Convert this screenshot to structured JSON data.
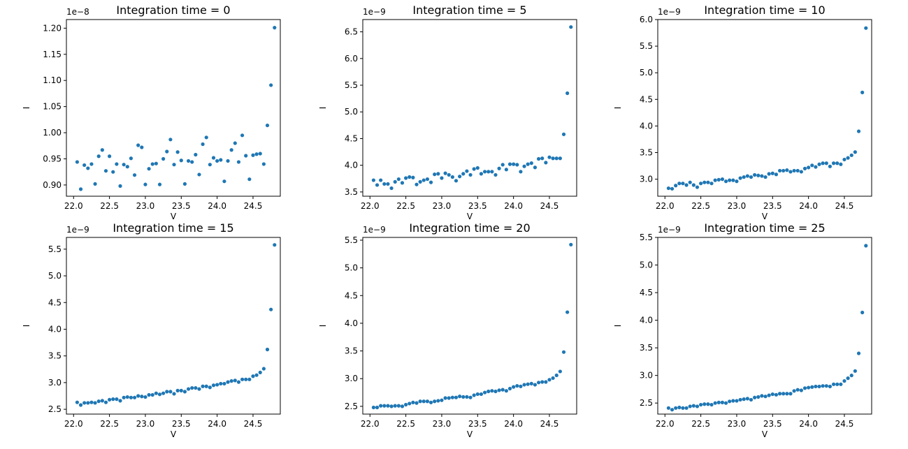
{
  "figure": {
    "colors": {
      "marker": "#1f77b4",
      "axes": "#000000",
      "background": "#ffffff"
    }
  },
  "chart_data": [
    {
      "type": "scatter",
      "title": "Integration time = 0",
      "xlabel": "V",
      "ylabel": "I",
      "offset_text": "1e−8",
      "xlim": [
        21.9,
        24.88
      ],
      "ylim": [
        0.8785,
        1.2165
      ],
      "xticks": [
        22.0,
        22.5,
        23.0,
        23.5,
        24.0,
        24.5
      ],
      "xtick_labels": [
        "22.0",
        "22.5",
        "23.0",
        "23.5",
        "24.0",
        "24.5"
      ],
      "yticks": [
        0.9,
        0.95,
        1.0,
        1.05,
        1.1,
        1.15,
        1.2
      ],
      "ytick_labels": [
        "0.90",
        "0.95",
        "1.00",
        "1.05",
        "1.10",
        "1.15",
        "1.20"
      ],
      "grid": false,
      "series": [
        {
          "x": [
            22.05,
            22.1,
            22.15,
            22.2,
            22.25,
            22.3,
            22.35,
            22.4,
            22.45,
            22.5,
            22.55,
            22.6,
            22.65,
            22.7,
            22.75,
            22.8,
            22.85,
            22.9,
            22.95,
            23.0,
            23.05,
            23.1,
            23.15,
            23.2,
            23.25,
            23.3,
            23.35,
            23.4,
            23.45,
            23.5,
            23.55,
            23.6,
            23.65,
            23.7,
            23.75,
            23.8,
            23.85,
            23.9,
            23.95,
            24.0,
            24.05,
            24.1,
            24.15,
            24.2,
            24.25,
            24.3,
            24.35,
            24.4,
            24.45,
            24.5,
            24.55,
            24.6,
            24.65,
            24.7,
            24.75,
            24.8
          ],
          "y": [
            0.944,
            0.892,
            0.938,
            0.932,
            0.94,
            0.902,
            0.955,
            0.967,
            0.927,
            0.955,
            0.925,
            0.94,
            0.898,
            0.939,
            0.935,
            0.951,
            0.919,
            0.976,
            0.972,
            0.901,
            0.931,
            0.94,
            0.941,
            0.901,
            0.95,
            0.964,
            0.987,
            0.939,
            0.963,
            0.947,
            0.902,
            0.946,
            0.944,
            0.958,
            0.92,
            0.978,
            0.991,
            0.939,
            0.952,
            0.946,
            0.948,
            0.907,
            0.946,
            0.967,
            0.98,
            0.944,
            0.995,
            0.956,
            0.911,
            0.957,
            0.959,
            0.96,
            0.94,
            1.014,
            1.091,
            1.201
          ]
        }
      ]
    },
    {
      "type": "scatter",
      "title": "Integration time = 5",
      "xlabel": "V",
      "ylabel": "I",
      "offset_text": "1e−9",
      "xlim": [
        21.9,
        24.88
      ],
      "ylim": [
        3.42,
        6.73
      ],
      "xticks": [
        22.0,
        22.5,
        23.0,
        23.5,
        24.0,
        24.5
      ],
      "xtick_labels": [
        "22.0",
        "22.5",
        "23.0",
        "23.5",
        "24.0",
        "24.5"
      ],
      "yticks": [
        3.5,
        4.0,
        4.5,
        5.0,
        5.5,
        6.0,
        6.5
      ],
      "ytick_labels": [
        "3.5",
        "4.0",
        "4.5",
        "5.0",
        "5.5",
        "6.0",
        "6.5"
      ],
      "grid": false,
      "series": [
        {
          "x": [
            22.05,
            22.1,
            22.15,
            22.2,
            22.25,
            22.3,
            22.35,
            22.4,
            22.45,
            22.5,
            22.55,
            22.6,
            22.65,
            22.7,
            22.75,
            22.8,
            22.85,
            22.9,
            22.95,
            23.0,
            23.05,
            23.1,
            23.15,
            23.2,
            23.25,
            23.3,
            23.35,
            23.4,
            23.45,
            23.5,
            23.55,
            23.6,
            23.65,
            23.7,
            23.75,
            23.8,
            23.85,
            23.9,
            23.95,
            24.0,
            24.05,
            24.1,
            24.15,
            24.2,
            24.25,
            24.3,
            24.35,
            24.4,
            24.45,
            24.5,
            24.55,
            24.6,
            24.65,
            24.7,
            24.75,
            24.8
          ],
          "y": [
            3.72,
            3.63,
            3.72,
            3.65,
            3.65,
            3.57,
            3.69,
            3.74,
            3.67,
            3.76,
            3.78,
            3.77,
            3.64,
            3.69,
            3.72,
            3.74,
            3.68,
            3.83,
            3.84,
            3.76,
            3.85,
            3.82,
            3.78,
            3.71,
            3.79,
            3.84,
            3.89,
            3.82,
            3.93,
            3.95,
            3.84,
            3.88,
            3.88,
            3.88,
            3.82,
            3.94,
            4.01,
            3.92,
            4.02,
            4.02,
            4.01,
            3.88,
            3.98,
            4.02,
            4.04,
            3.96,
            4.12,
            4.13,
            4.05,
            4.15,
            4.13,
            4.13,
            4.13,
            4.58,
            5.35,
            6.59
          ]
        }
      ]
    },
    {
      "type": "scatter",
      "title": "Integration time = 10",
      "xlabel": "V",
      "ylabel": "I",
      "offset_text": "1e−9",
      "xlim": [
        21.9,
        24.88
      ],
      "ylim": [
        2.68,
        6.0
      ],
      "xticks": [
        22.0,
        22.5,
        23.0,
        23.5,
        24.0,
        24.5
      ],
      "xtick_labels": [
        "22.0",
        "22.5",
        "23.0",
        "23.5",
        "24.0",
        "24.5"
      ],
      "yticks": [
        3.0,
        3.5,
        4.0,
        4.5,
        5.0,
        5.5,
        6.0
      ],
      "ytick_labels": [
        "3.0",
        "3.5",
        "4.0",
        "4.5",
        "5.0",
        "5.5",
        "6.0"
      ],
      "grid": false,
      "series": [
        {
          "x": [
            22.05,
            22.1,
            22.15,
            22.2,
            22.25,
            22.3,
            22.35,
            22.4,
            22.45,
            22.5,
            22.55,
            22.6,
            22.65,
            22.7,
            22.75,
            22.8,
            22.85,
            22.9,
            22.95,
            23.0,
            23.05,
            23.1,
            23.15,
            23.2,
            23.25,
            23.3,
            23.35,
            23.4,
            23.45,
            23.5,
            23.55,
            23.6,
            23.65,
            23.7,
            23.75,
            23.8,
            23.85,
            23.9,
            23.95,
            24.0,
            24.05,
            24.1,
            24.15,
            24.2,
            24.25,
            24.3,
            24.35,
            24.4,
            24.45,
            24.5,
            24.55,
            24.6,
            24.65,
            24.7,
            24.75,
            24.8
          ],
          "y": [
            2.83,
            2.82,
            2.88,
            2.92,
            2.92,
            2.89,
            2.94,
            2.89,
            2.85,
            2.92,
            2.94,
            2.94,
            2.92,
            2.98,
            2.99,
            3.0,
            2.96,
            2.98,
            2.98,
            2.96,
            3.02,
            3.04,
            3.06,
            3.04,
            3.08,
            3.07,
            3.06,
            3.04,
            3.1,
            3.11,
            3.09,
            3.16,
            3.16,
            3.17,
            3.14,
            3.16,
            3.16,
            3.14,
            3.2,
            3.22,
            3.26,
            3.23,
            3.28,
            3.3,
            3.3,
            3.24,
            3.3,
            3.3,
            3.28,
            3.37,
            3.4,
            3.45,
            3.51,
            3.9,
            4.63,
            5.84
          ]
        }
      ]
    },
    {
      "type": "scatter",
      "title": "Integration time = 15",
      "xlabel": "V",
      "ylabel": "I",
      "offset_text": "1e−9",
      "xlim": [
        21.9,
        24.88
      ],
      "ylim": [
        2.41,
        5.72
      ],
      "xticks": [
        22.0,
        22.5,
        23.0,
        23.5,
        24.0,
        24.5
      ],
      "xtick_labels": [
        "22.0",
        "22.5",
        "23.0",
        "23.5",
        "24.0",
        "24.5"
      ],
      "yticks": [
        2.5,
        3.0,
        3.5,
        4.0,
        4.5,
        5.0,
        5.5
      ],
      "ytick_labels": [
        "2.5",
        "3.0",
        "3.5",
        "4.0",
        "4.5",
        "5.0",
        "5.5"
      ],
      "grid": false,
      "series": [
        {
          "x": [
            22.05,
            22.1,
            22.15,
            22.2,
            22.25,
            22.3,
            22.35,
            22.4,
            22.45,
            22.5,
            22.55,
            22.6,
            22.65,
            22.7,
            22.75,
            22.8,
            22.85,
            22.9,
            22.95,
            23.0,
            23.05,
            23.1,
            23.15,
            23.2,
            23.25,
            23.3,
            23.35,
            23.4,
            23.45,
            23.5,
            23.55,
            23.6,
            23.65,
            23.7,
            23.75,
            23.8,
            23.85,
            23.9,
            23.95,
            24.0,
            24.05,
            24.1,
            24.15,
            24.2,
            24.25,
            24.3,
            24.35,
            24.4,
            24.45,
            24.5,
            24.55,
            24.6,
            24.65,
            24.7,
            24.75,
            24.8
          ],
          "y": [
            2.63,
            2.58,
            2.62,
            2.62,
            2.63,
            2.62,
            2.65,
            2.66,
            2.63,
            2.68,
            2.69,
            2.69,
            2.66,
            2.72,
            2.73,
            2.72,
            2.72,
            2.75,
            2.74,
            2.73,
            2.77,
            2.77,
            2.8,
            2.78,
            2.8,
            2.83,
            2.83,
            2.79,
            2.85,
            2.85,
            2.83,
            2.88,
            2.9,
            2.9,
            2.88,
            2.93,
            2.93,
            2.91,
            2.95,
            2.96,
            2.98,
            2.98,
            3.01,
            3.03,
            3.04,
            3.01,
            3.06,
            3.06,
            3.06,
            3.12,
            3.14,
            3.19,
            3.26,
            3.62,
            4.37,
            5.58
          ]
        }
      ]
    },
    {
      "type": "scatter",
      "title": "Integration time = 20",
      "xlabel": "V",
      "ylabel": "I",
      "offset_text": "1e−9",
      "xlim": [
        21.9,
        24.88
      ],
      "ylim": [
        2.36,
        5.55
      ],
      "xticks": [
        22.0,
        22.5,
        23.0,
        23.5,
        24.0,
        24.5
      ],
      "xtick_labels": [
        "22.0",
        "22.5",
        "23.0",
        "23.5",
        "24.0",
        "24.5"
      ],
      "yticks": [
        2.5,
        3.0,
        3.5,
        4.0,
        4.5,
        5.0,
        5.5
      ],
      "ytick_labels": [
        "2.5",
        "3.0",
        "3.5",
        "4.0",
        "4.5",
        "5.0",
        "5.5"
      ],
      "grid": false,
      "series": [
        {
          "x": [
            22.05,
            22.1,
            22.15,
            22.2,
            22.25,
            22.3,
            22.35,
            22.4,
            22.45,
            22.5,
            22.55,
            22.6,
            22.65,
            22.7,
            22.75,
            22.8,
            22.85,
            22.9,
            22.95,
            23.0,
            23.05,
            23.1,
            23.15,
            23.2,
            23.25,
            23.3,
            23.35,
            23.4,
            23.45,
            23.5,
            23.55,
            23.6,
            23.65,
            23.7,
            23.75,
            23.8,
            23.85,
            23.9,
            23.95,
            24.0,
            24.05,
            24.1,
            24.15,
            24.2,
            24.25,
            24.3,
            24.35,
            24.4,
            24.45,
            24.5,
            24.55,
            24.6,
            24.65,
            24.7,
            24.75,
            24.8
          ],
          "y": [
            2.48,
            2.48,
            2.51,
            2.51,
            2.51,
            2.5,
            2.51,
            2.51,
            2.5,
            2.53,
            2.55,
            2.57,
            2.56,
            2.59,
            2.59,
            2.59,
            2.57,
            2.59,
            2.6,
            2.61,
            2.65,
            2.65,
            2.66,
            2.66,
            2.68,
            2.67,
            2.67,
            2.66,
            2.7,
            2.72,
            2.72,
            2.75,
            2.77,
            2.78,
            2.77,
            2.79,
            2.8,
            2.78,
            2.82,
            2.85,
            2.87,
            2.86,
            2.89,
            2.9,
            2.91,
            2.89,
            2.93,
            2.94,
            2.94,
            2.98,
            3.01,
            3.06,
            3.13,
            3.48,
            4.2,
            5.42
          ]
        }
      ]
    },
    {
      "type": "scatter",
      "title": "Integration time = 25",
      "xlabel": "V",
      "ylabel": "I",
      "offset_text": "1e−9",
      "xlim": [
        21.9,
        24.88
      ],
      "ylim": [
        2.3,
        5.5
      ],
      "xticks": [
        22.0,
        22.5,
        23.0,
        23.5,
        24.0,
        24.5
      ],
      "xtick_labels": [
        "22.0",
        "22.5",
        "23.0",
        "23.5",
        "24.0",
        "24.5"
      ],
      "yticks": [
        2.5,
        3.0,
        3.5,
        4.0,
        4.5,
        5.0,
        5.5
      ],
      "ytick_labels": [
        "2.5",
        "3.0",
        "3.5",
        "4.0",
        "4.5",
        "5.0",
        "5.5"
      ],
      "grid": false,
      "series": [
        {
          "x": [
            22.05,
            22.1,
            22.15,
            22.2,
            22.25,
            22.3,
            22.35,
            22.4,
            22.45,
            22.5,
            22.55,
            22.6,
            22.65,
            22.7,
            22.75,
            22.8,
            22.85,
            22.9,
            22.95,
            23.0,
            23.05,
            23.1,
            23.15,
            23.2,
            23.25,
            23.3,
            23.35,
            23.4,
            23.45,
            23.5,
            23.55,
            23.6,
            23.65,
            23.7,
            23.75,
            23.8,
            23.85,
            23.9,
            23.95,
            24.0,
            24.05,
            24.1,
            24.15,
            24.2,
            24.25,
            24.3,
            24.35,
            24.4,
            24.45,
            24.5,
            24.55,
            24.6,
            24.65,
            24.7,
            24.75,
            24.8
          ],
          "y": [
            2.41,
            2.38,
            2.41,
            2.42,
            2.41,
            2.41,
            2.44,
            2.45,
            2.44,
            2.47,
            2.48,
            2.48,
            2.47,
            2.5,
            2.51,
            2.51,
            2.5,
            2.53,
            2.54,
            2.54,
            2.56,
            2.57,
            2.58,
            2.56,
            2.6,
            2.61,
            2.63,
            2.62,
            2.64,
            2.66,
            2.65,
            2.67,
            2.67,
            2.67,
            2.67,
            2.72,
            2.74,
            2.73,
            2.77,
            2.78,
            2.79,
            2.8,
            2.8,
            2.81,
            2.81,
            2.8,
            2.84,
            2.84,
            2.84,
            2.9,
            2.95,
            3.0,
            3.08,
            3.4,
            4.14,
            5.35
          ]
        }
      ]
    }
  ]
}
